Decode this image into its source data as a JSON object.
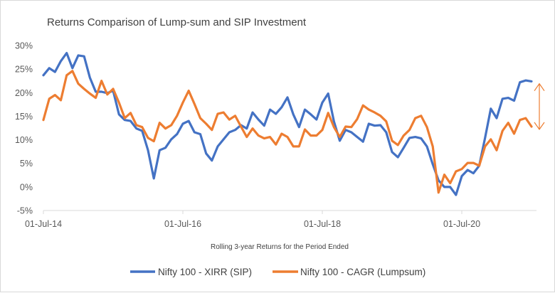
{
  "chart_data": {
    "type": "line",
    "title": "Returns Comparison of Lump-sum and SIP Investment",
    "xlabel": "Rolling 3-year Returns for the Period Ended",
    "ylabel": "",
    "ylim": [
      -5,
      30
    ],
    "yticks": [
      "30%",
      "25%",
      "20%",
      "15%",
      "10%",
      "5%",
      "0%",
      "-5%"
    ],
    "ytick_values": [
      30,
      25,
      20,
      15,
      10,
      5,
      0,
      -5
    ],
    "xticks": [
      "01-Jul-14",
      "01-Jul-16",
      "01-Jul-18",
      "01-Jul-20"
    ],
    "grid": false,
    "legend_position": "bottom",
    "x": [
      "01-Jul-14",
      "01-Aug-14",
      "01-Sep-14",
      "01-Oct-14",
      "01-Nov-14",
      "01-Dec-14",
      "01-Jan-15",
      "01-Feb-15",
      "01-Mar-15",
      "01-Apr-15",
      "01-May-15",
      "01-Jun-15",
      "01-Jul-15",
      "01-Aug-15",
      "01-Sep-15",
      "01-Oct-15",
      "01-Nov-15",
      "01-Dec-15",
      "01-Jan-16",
      "01-Feb-16",
      "01-Mar-16",
      "01-Apr-16",
      "01-May-16",
      "01-Jun-16",
      "01-Jul-16",
      "01-Aug-16",
      "01-Sep-16",
      "01-Oct-16",
      "01-Nov-16",
      "01-Dec-16",
      "01-Jan-17",
      "01-Feb-17",
      "01-Mar-17",
      "01-Apr-17",
      "01-May-17",
      "01-Jun-17",
      "01-Jul-17",
      "01-Aug-17",
      "01-Sep-17",
      "01-Oct-17",
      "01-Nov-17",
      "01-Dec-17",
      "01-Jan-18",
      "01-Feb-18",
      "01-Mar-18",
      "01-Apr-18",
      "01-May-18",
      "01-Jun-18",
      "01-Jul-18",
      "01-Aug-18",
      "01-Sep-18",
      "01-Oct-18",
      "01-Nov-18",
      "01-Dec-18",
      "01-Jan-19",
      "01-Feb-19",
      "01-Mar-19",
      "01-Apr-19",
      "01-May-19",
      "01-Jun-19",
      "01-Jul-19",
      "01-Aug-19",
      "01-Sep-19",
      "01-Oct-19",
      "01-Nov-19",
      "01-Dec-19",
      "01-Jan-20",
      "01-Feb-20",
      "01-Mar-20",
      "01-Apr-20",
      "01-May-20",
      "01-Jun-20",
      "01-Jul-20",
      "01-Aug-20",
      "01-Sep-20",
      "01-Oct-20",
      "01-Nov-20",
      "01-Dec-20",
      "01-Jan-21",
      "01-Feb-21",
      "01-Mar-21",
      "01-Apr-21",
      "01-May-21",
      "01-Jun-21",
      "01-Jul-21"
    ],
    "series": [
      {
        "name": "Nifty 100 - XIRR (SIP)",
        "color": "#4472c4",
        "values": [
          23.7,
          25.2,
          24.4,
          26.7,
          28.4,
          25.2,
          27.9,
          27.7,
          23.2,
          20.2,
          20.2,
          19.9,
          20.4,
          15.4,
          14.2,
          14.0,
          12.4,
          11.9,
          7.8,
          1.8,
          7.8,
          8.3,
          10.1,
          11.2,
          13.4,
          14.0,
          11.6,
          11.2,
          7.1,
          5.6,
          8.6,
          10.1,
          11.6,
          12.1,
          13.1,
          12.4,
          15.8,
          14.3,
          13.0,
          16.4,
          15.5,
          16.9,
          19.0,
          15.4,
          12.7,
          16.4,
          15.4,
          14.3,
          17.9,
          19.8,
          13.9,
          9.8,
          12.1,
          11.6,
          10.6,
          9.6,
          13.4,
          13.0,
          13.1,
          11.6,
          7.4,
          6.3,
          8.3,
          10.4,
          10.6,
          10.3,
          8.6,
          4.8,
          1.4,
          0.0,
          0.0,
          -1.7,
          2.3,
          3.6,
          2.9,
          4.5,
          10.4,
          16.6,
          14.6,
          18.7,
          18.9,
          18.3,
          22.2,
          22.6,
          22.4
        ]
      },
      {
        "name": "Nifty 100 - CAGR (Lumpsum)",
        "color": "#ed7d31",
        "values": [
          14.2,
          18.7,
          19.5,
          18.4,
          23.7,
          24.6,
          21.9,
          20.8,
          19.8,
          18.9,
          22.5,
          19.6,
          20.8,
          17.9,
          14.6,
          15.7,
          13.1,
          12.7,
          10.4,
          9.7,
          13.6,
          12.4,
          13.1,
          15.1,
          17.9,
          20.4,
          17.6,
          14.6,
          13.4,
          12.1,
          15.5,
          15.8,
          14.3,
          15.1,
          12.8,
          10.6,
          12.4,
          10.9,
          10.3,
          10.6,
          9.0,
          11.3,
          10.6,
          8.6,
          8.6,
          12.2,
          10.9,
          10.9,
          12.1,
          15.7,
          12.7,
          10.6,
          12.8,
          12.7,
          14.4,
          17.3,
          16.4,
          15.8,
          15.1,
          13.9,
          9.8,
          8.9,
          10.9,
          12.1,
          14.6,
          15.1,
          12.7,
          8.6,
          -1.2,
          2.6,
          0.8,
          3.3,
          3.8,
          5.1,
          5.1,
          4.5,
          8.6,
          10.1,
          7.8,
          11.9,
          13.6,
          11.3,
          14.2,
          14.6,
          12.8
        ]
      }
    ],
    "annotation": {
      "type": "double-arrow",
      "color": "#ed7d31",
      "from_value": 22.2,
      "to_value": 12.5
    }
  }
}
